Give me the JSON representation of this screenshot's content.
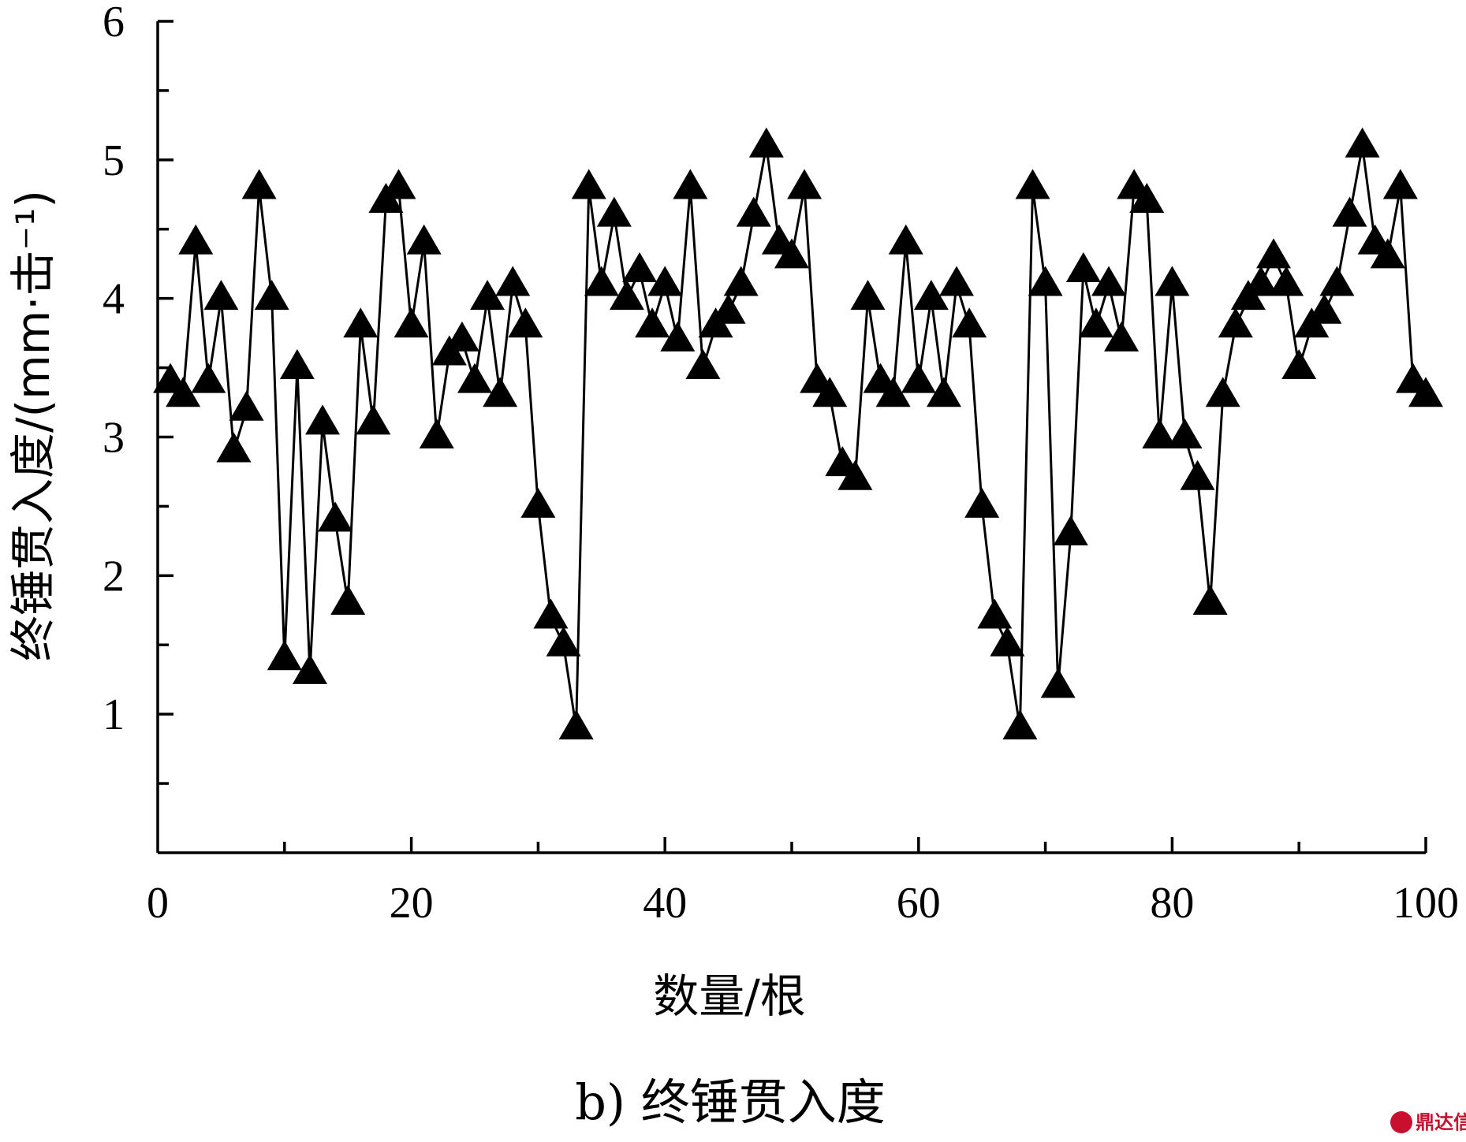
{
  "chart_data": {
    "type": "line",
    "marker": "triangle",
    "xlabel": "数量/根",
    "ylabel": "终锤贯入度/(mm·击⁻¹)",
    "caption": "b) 终锤贯入度",
    "xlim": [
      0,
      100
    ],
    "ylim": [
      0,
      6
    ],
    "xticks": [
      0,
      20,
      40,
      60,
      80,
      100
    ],
    "xtick_labels": [
      "0",
      "20",
      "40",
      "60",
      "80",
      "100"
    ],
    "yticks": [
      1,
      2,
      3,
      4,
      5,
      6
    ],
    "ytick_labels": [
      "1",
      "2",
      "3",
      "4",
      "5",
      "6"
    ],
    "grid": false,
    "series": [
      {
        "color": "#000000",
        "x": [
          1,
          2,
          3,
          4,
          5,
          6,
          7,
          8,
          9,
          10,
          11,
          12,
          13,
          14,
          15,
          16,
          17,
          18,
          19,
          20,
          21,
          22,
          23,
          24,
          25,
          26,
          27,
          28,
          29,
          30,
          31,
          32,
          33,
          34,
          35,
          36,
          37,
          38,
          39,
          40,
          41,
          42,
          43,
          44,
          45,
          46,
          47,
          48,
          49,
          50,
          51,
          52,
          53,
          54,
          55,
          56,
          57,
          58,
          59,
          60,
          61,
          62,
          63,
          64,
          65,
          66,
          67,
          68,
          69,
          70,
          71,
          72,
          73,
          74,
          75,
          76,
          77,
          78,
          79,
          80,
          81,
          82,
          83,
          84,
          85,
          86,
          87,
          88,
          89,
          90,
          91,
          92,
          93,
          94,
          95,
          96,
          97,
          98,
          99,
          100
        ],
        "values": [
          3.4,
          3.3,
          4.4,
          3.4,
          4.0,
          2.9,
          3.2,
          4.8,
          4.0,
          1.4,
          3.5,
          1.3,
          3.1,
          2.4,
          1.8,
          3.8,
          3.1,
          4.7,
          4.8,
          3.8,
          4.4,
          3.0,
          3.6,
          3.7,
          3.4,
          4.0,
          3.3,
          4.1,
          3.8,
          2.5,
          1.7,
          1.5,
          0.9,
          4.8,
          4.1,
          4.6,
          4.0,
          4.2,
          3.8,
          4.1,
          3.7,
          4.8,
          3.5,
          3.8,
          3.9,
          4.1,
          4.6,
          5.1,
          4.4,
          4.3,
          4.8,
          3.4,
          3.3,
          2.8,
          2.7,
          4.0,
          3.4,
          3.3,
          4.4,
          3.4,
          4.0,
          3.3,
          4.1,
          3.8,
          2.5,
          1.7,
          1.5,
          0.9,
          4.8,
          4.1,
          1.2,
          2.3,
          4.2,
          3.8,
          4.1,
          3.7,
          4.8,
          4.7,
          3.0,
          4.1,
          3.0,
          2.7,
          1.8,
          3.3,
          3.8,
          4.0,
          4.1,
          4.3,
          4.1,
          3.5,
          3.8,
          3.9,
          4.1,
          4.6,
          5.1,
          4.4,
          4.3,
          4.8,
          3.4,
          3.3
        ]
      }
    ]
  },
  "watermark": {
    "text": "鼎达信",
    "color": "#c8102e"
  }
}
